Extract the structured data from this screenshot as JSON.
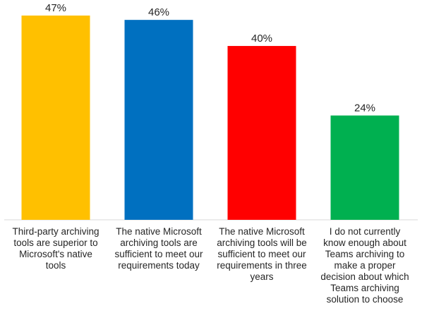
{
  "chart_data": {
    "type": "bar",
    "categories": [
      "Third-party archiving tools are superior to Microsoft's native tools",
      "The native Microsoft archiving tools are sufficient to meet our requirements today",
      "The native Microsoft archiving tools will be sufficient to meet our requirements in three years",
      "I do not currently know enough about Teams archiving to make a proper decision about which Teams archiving solution to choose"
    ],
    "category_lines": [
      [
        "Third-party archiving",
        "tools are superior to",
        "Microsoft's native",
        "tools"
      ],
      [
        "The native Microsoft",
        "archiving tools are",
        "sufficient to meet our",
        "requirements today"
      ],
      [
        "The native Microsoft",
        "archiving tools will be",
        "sufficient to meet our",
        "requirements in three",
        "years"
      ],
      [
        "I do not currently",
        "know enough about",
        "Teams archiving to",
        "make a proper",
        "decision about which",
        "Teams archiving",
        "solution to choose"
      ]
    ],
    "values": [
      47,
      46,
      40,
      24
    ],
    "value_labels": [
      "47%",
      "46%",
      "40%",
      "24%"
    ],
    "colors": [
      "#FFC000",
      "#0070C0",
      "#FF0000",
      "#00B050"
    ],
    "title": "",
    "xlabel": "",
    "ylabel": "",
    "ylim": [
      0,
      50
    ],
    "grid": false,
    "legend": "none",
    "baseline_color": "#d9d9d9"
  }
}
